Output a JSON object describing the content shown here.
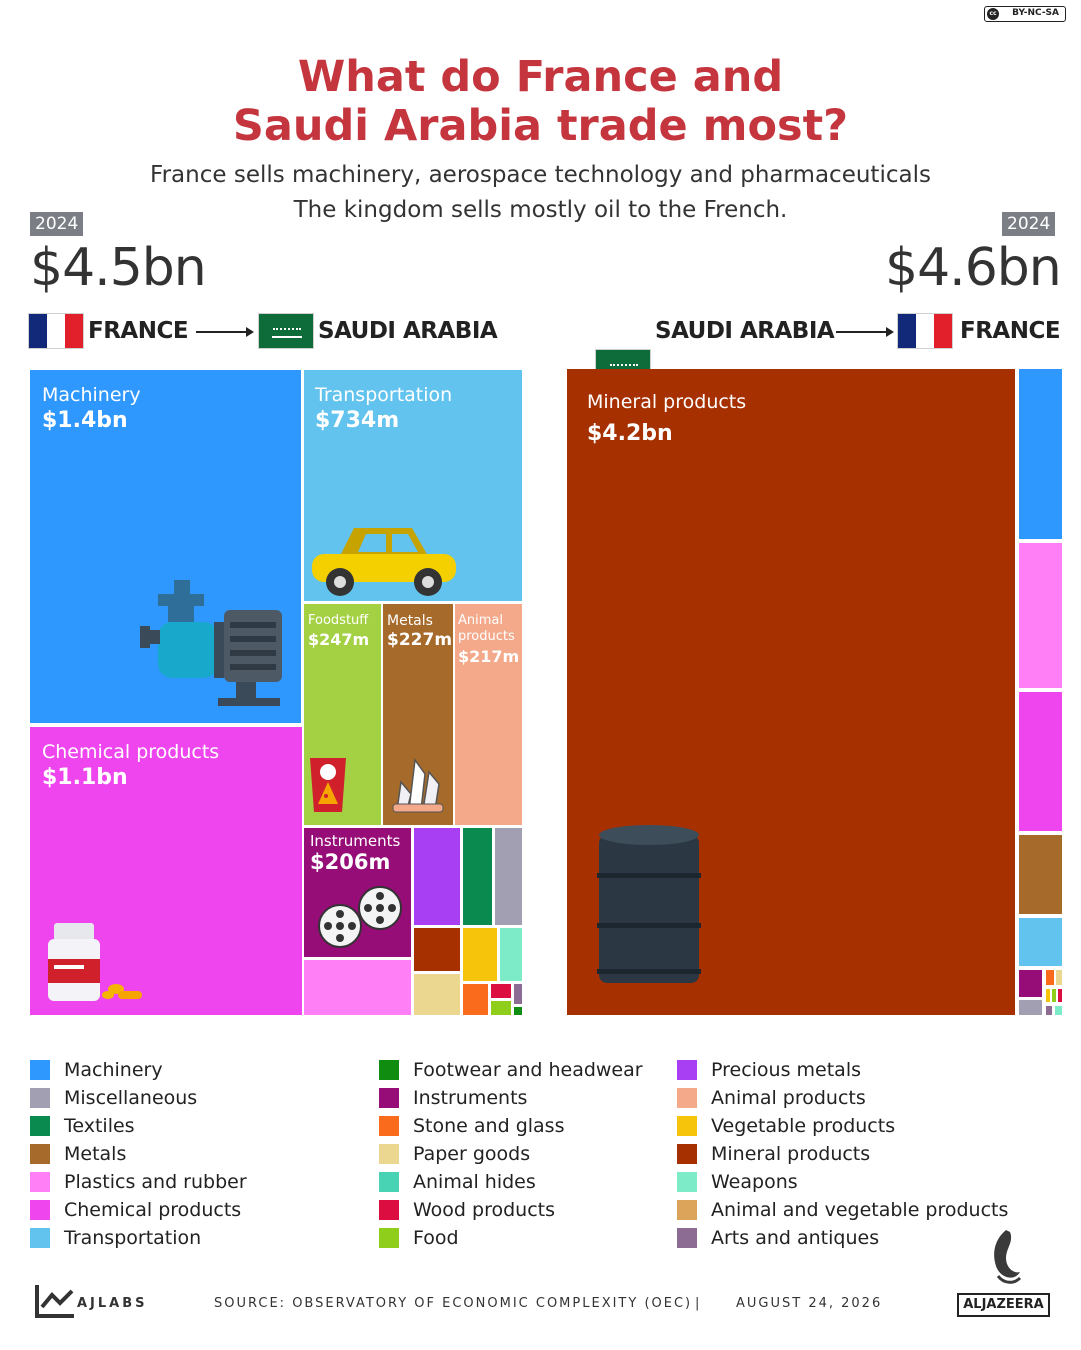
{
  "header": {
    "license": "BY-NC-SA",
    "license_symbol": "cc",
    "title_line1": "What do France and",
    "title_line2": "Saudi Arabia trade most?",
    "subtitle_line1": "France sells machinery, aerospace technology and pharmaceuticals",
    "subtitle_line2": "The kingdom sells mostly oil to the French."
  },
  "left": {
    "year": "2024",
    "total": "$4.5bn",
    "from": "FRANCE",
    "to": "SAUDI ARABIA",
    "labels": {
      "machinery_name": "Machinery",
      "machinery_value": "$1.4bn",
      "transport_name": "Transportation",
      "transport_value": "$734m",
      "chemical_name": "Chemical products",
      "chemical_value": "$1.1bn",
      "food_name": "Foodstuff",
      "food_value": "$247m",
      "metals_name": "Metals",
      "metals_value": "$227m",
      "animal_name_1": "Animal",
      "animal_name_2": "products",
      "animal_value": "$217m",
      "instruments_name": "Instruments",
      "instruments_value": "$206m"
    }
  },
  "right": {
    "year": "2024",
    "total": "$4.6bn",
    "from": "SAUDI ARABIA",
    "to": "FRANCE",
    "labels": {
      "mineral_name": "Mineral products",
      "mineral_value": "$4.2bn"
    }
  },
  "colors": {
    "Machinery": "#2f98ff",
    "Miscellaneous": "#a29fb3",
    "Textiles": "#0a8a4e",
    "Metals": "#a66a2b",
    "Plastics and rubber": "#ff7ff7",
    "Chemical products": "#ef45ee",
    "Transportation": "#62c3ee",
    "Footwear and headwear": "#108c11",
    "Instruments": "#960d78",
    "Stone and glass": "#fa6b1c",
    "Paper goods": "#ecd790",
    "Animal hides": "#48d3b4",
    "Wood products": "#dc0d41",
    "Food": "#8fce1b",
    "Precious metals": "#a93ff3",
    "Animal products": "#f3a98a",
    "Vegetable products": "#f5c40b",
    "Mineral products": "#a63000",
    "Weapons": "#7deac8",
    "Animal and vegetable products": "#dca35a",
    "Arts and antiques": "#8d6c94",
    "Foodstuff": "#a4d144",
    "Ink": "#2b3844"
  },
  "legend": [
    [
      "Machinery",
      "Miscellaneous",
      "Textiles",
      "Metals",
      "Plastics and rubber",
      "Chemical products",
      "Transportation"
    ],
    [
      "Footwear and headwear",
      "Instruments",
      "Stone and glass",
      "Paper goods",
      "Animal hides",
      "Wood products",
      "Food"
    ],
    [
      "Precious metals",
      "Animal products",
      "Vegetable products",
      "Mineral products",
      "Weapons",
      "Animal and vegetable products",
      "Arts and antiques"
    ]
  ],
  "footer": {
    "brand": "AJLABS",
    "source": "SOURCE:  OBSERVATORY OF ECONOMIC COMPLEXITY (OEC)",
    "separator": "|",
    "date": "AUGUST 24, 2026",
    "logo_text": "ALJAZEERA"
  },
  "chart_data": [
    {
      "type": "treemap",
      "title": "FRANCE → SAUDI ARABIA",
      "total": "$4.5bn",
      "year": "2024",
      "items": [
        {
          "category": "Machinery",
          "value_label": "$1.4bn",
          "value_usd_m": 1400
        },
        {
          "category": "Chemical products",
          "value_label": "$1.1bn",
          "value_usd_m": 1100
        },
        {
          "category": "Transportation",
          "value_label": "$734m",
          "value_usd_m": 734
        },
        {
          "category": "Foodstuff",
          "value_label": "$247m",
          "value_usd_m": 247
        },
        {
          "category": "Metals",
          "value_label": "$227m",
          "value_usd_m": 227
        },
        {
          "category": "Animal products",
          "value_label": "$217m",
          "value_usd_m": 217
        },
        {
          "category": "Instruments",
          "value_label": "$206m",
          "value_usd_m": 206
        },
        {
          "category": "Plastics and rubber",
          "value_usd_m": 104
        },
        {
          "category": "Precious metals",
          "value_usd_m": 96
        },
        {
          "category": "Textiles",
          "value_usd_m": 56
        },
        {
          "category": "Miscellaneous",
          "value_usd_m": 50
        },
        {
          "category": "Paper goods",
          "value_usd_m": 45
        },
        {
          "category": "Mineral products",
          "value_usd_m": 45
        },
        {
          "category": "Vegetable products",
          "value_usd_m": 35
        },
        {
          "category": "Weapons",
          "value_usd_m": 24
        },
        {
          "category": "Stone and glass",
          "value_usd_m": 17
        },
        {
          "category": "Wood products",
          "value_usd_m": 8
        },
        {
          "category": "Food",
          "value_usd_m": 8
        },
        {
          "category": "Arts and antiques",
          "value_usd_m": 5
        },
        {
          "category": "Footwear and headwear",
          "value_usd_m": 2
        }
      ]
    },
    {
      "type": "treemap",
      "title": "SAUDI ARABIA → FRANCE",
      "total": "$4.6bn",
      "year": "2024",
      "items": [
        {
          "category": "Mineral products",
          "value_label": "$4.2bn",
          "value_usd_m": 4200
        },
        {
          "category": "Plastics and rubber",
          "value_usd_m": 103
        },
        {
          "category": "Chemical products",
          "value_usd_m": 100
        },
        {
          "category": "Machinery",
          "value_usd_m": 87
        },
        {
          "category": "Metals",
          "value_usd_m": 58
        },
        {
          "category": "Transportation",
          "value_usd_m": 37
        },
        {
          "category": "Instruments",
          "value_usd_m": 12
        },
        {
          "category": "Miscellaneous",
          "value_usd_m": 6
        },
        {
          "category": "Stone and glass",
          "value_usd_m": 3
        },
        {
          "category": "Paper goods",
          "value_usd_m": 3
        },
        {
          "category": "Vegetable products",
          "value_usd_m": 2
        },
        {
          "category": "Food",
          "value_usd_m": 2
        },
        {
          "category": "Wood products",
          "value_usd_m": 1
        },
        {
          "category": "Weapons",
          "value_usd_m": 1
        },
        {
          "category": "Arts and antiques",
          "value_usd_m": 1
        }
      ]
    }
  ]
}
